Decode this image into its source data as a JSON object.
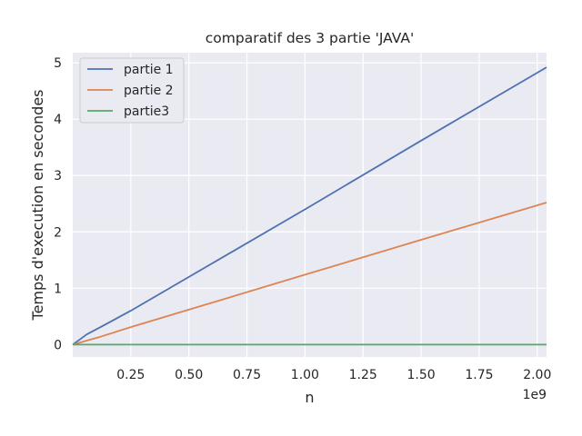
{
  "chart_data": {
    "type": "line",
    "title": "comparatif des 3 partie 'JAVA'",
    "xlabel": "n",
    "ylabel": "Temps d'execution en secondes",
    "x_offset_label": "1e9",
    "xlim": [
      0,
      2.04
    ],
    "ylim": [
      -0.22,
      5.18
    ],
    "x_ticks": [
      0.25,
      0.5,
      0.75,
      1.0,
      1.25,
      1.5,
      1.75,
      2.0
    ],
    "x_tick_labels": [
      "0.25",
      "0.50",
      "0.75",
      "1.00",
      "1.25",
      "1.50",
      "1.75",
      "2.00"
    ],
    "y_ticks": [
      0,
      1,
      2,
      3,
      4,
      5
    ],
    "y_tick_labels": [
      "0",
      "1",
      "2",
      "3",
      "4",
      "5"
    ],
    "grid": true,
    "legend_position": "top-left",
    "x": [
      0.0,
      0.03,
      0.06,
      0.12,
      0.25,
      0.5,
      1.0,
      1.5,
      2.04
    ],
    "series": [
      {
        "name": "partie 1",
        "color": "#4c72b0",
        "values": [
          0.0,
          0.09,
          0.18,
          0.31,
          0.6,
          1.2,
          2.4,
          3.62,
          4.92
        ]
      },
      {
        "name": "partie 2",
        "color": "#dd8452",
        "values": [
          0.0,
          0.035,
          0.07,
          0.14,
          0.31,
          0.62,
          1.24,
          1.86,
          2.52
        ]
      },
      {
        "name": "partie3",
        "color": "#55a868",
        "values": [
          0.0,
          0.0,
          0.0,
          0.0,
          0.0,
          0.0,
          0.0,
          0.0,
          0.0
        ]
      }
    ]
  }
}
